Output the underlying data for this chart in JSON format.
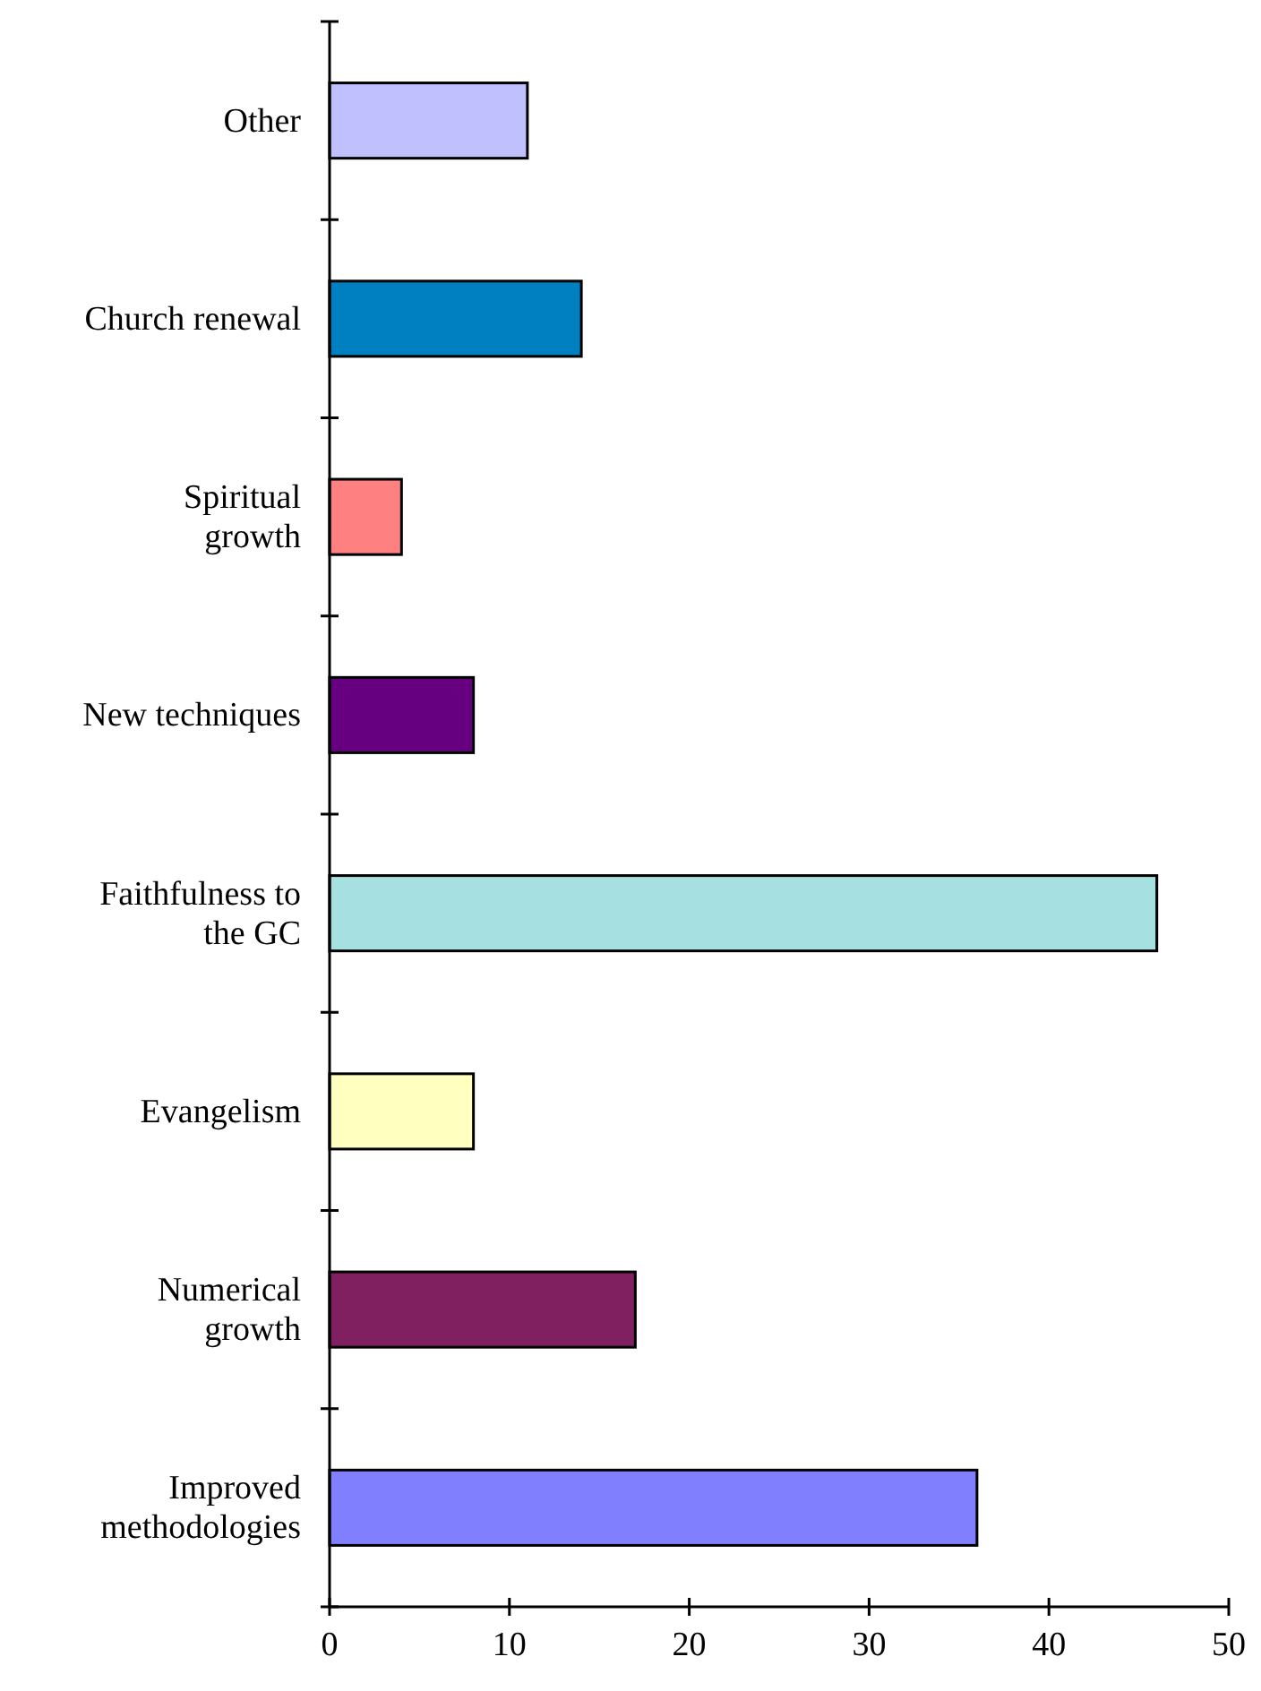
{
  "chart_data": {
    "type": "bar",
    "orientation": "horizontal",
    "categories": [
      "Other",
      "Church renewal",
      "Spiritual growth",
      "New techniques",
      "Faithfulness to the GC",
      "Evangelism",
      "Numerical growth",
      "Improved methodologies"
    ],
    "values": [
      11,
      14,
      4,
      8,
      46,
      8,
      17,
      36
    ],
    "colors": [
      "#c0c0ff",
      "#0080c0",
      "#ff8080",
      "#660080",
      "#a6e0e0",
      "#ffffc0",
      "#802060",
      "#8080ff"
    ],
    "xlim": [
      0,
      50
    ],
    "xticks": [
      0,
      10,
      20,
      30,
      40,
      50
    ],
    "grid": false
  }
}
